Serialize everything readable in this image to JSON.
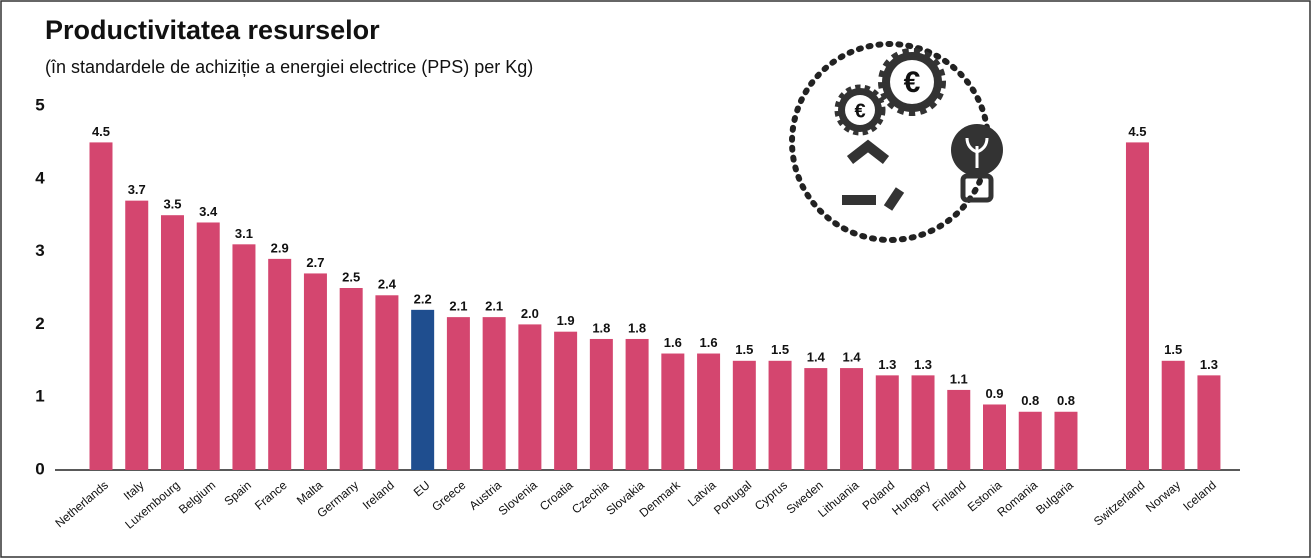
{
  "chart_data": {
    "type": "bar",
    "title": "Productivitatea resurselor",
    "subtitle": "(în standardele de achiziție a energiei electrice (PPS) per Kg)",
    "categories": [
      "Netherlands",
      "Italy",
      "Luxembourg",
      "Belgium",
      "Spain",
      "France",
      "Malta",
      "Germany",
      "Ireland",
      "EU",
      "Greece",
      "Austria",
      "Slovenia",
      "Croatia",
      "Czechia",
      "Slovakia",
      "Denmark",
      "Latvia",
      "Portugal",
      "Cyprus",
      "Sweden",
      "Lithuania",
      "Poland",
      "Hungary",
      "Finland",
      "Estonia",
      "Romania",
      "Bulgaria",
      null,
      "Switzerland",
      "Norway",
      "Iceland"
    ],
    "values": [
      4.5,
      3.7,
      3.5,
      3.4,
      3.1,
      2.9,
      2.7,
      2.5,
      2.4,
      2.2,
      2.1,
      2.1,
      2.0,
      1.9,
      1.8,
      1.8,
      1.6,
      1.6,
      1.5,
      1.5,
      1.4,
      1.4,
      1.3,
      1.3,
      1.1,
      0.9,
      0.8,
      0.8,
      null,
      4.5,
      1.5,
      1.3
    ],
    "value_labels": [
      "4.5",
      "3.7",
      "3.5",
      "3.4",
      "3.1",
      "2.9",
      "2.7",
      "2.5",
      "2.4",
      "2.2",
      "2.1",
      "2.1",
      "2.0",
      "1.9",
      "1.8",
      "1.8",
      "1.6",
      "1.6",
      "1.5",
      "1.5",
      "1.4",
      "1.4",
      "1.3",
      "1.3",
      "1.1",
      "0.9",
      "0.8",
      "0.8",
      null,
      "4.5",
      "1.5",
      "1.3"
    ],
    "color": "#d4466f",
    "highlight": {
      "category": "EU",
      "color": "#1f4e8f"
    },
    "ylim": [
      0,
      5
    ],
    "yticks": [
      0,
      1,
      2,
      3,
      4,
      5
    ],
    "grid": false,
    "icon_symbols": [
      "€",
      "€"
    ]
  }
}
